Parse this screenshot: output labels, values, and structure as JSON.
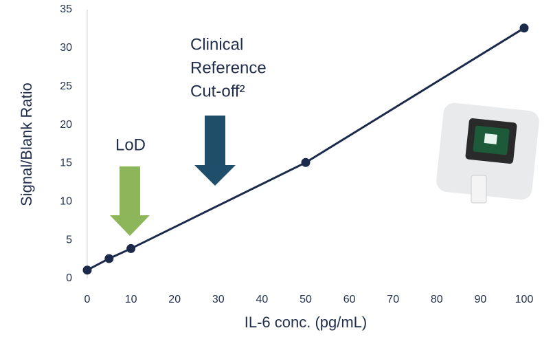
{
  "chart_data": {
    "type": "line",
    "x_label": "IL-6 conc. (pg/mL)",
    "y_label": "Signal/Blank Ratio",
    "x": [
      0,
      5,
      10,
      50,
      100
    ],
    "series": [
      {
        "color": "#1b2a4a",
        "values": [
          1.1,
          2.6,
          3.9,
          15.1,
          32.6
        ]
      }
    ],
    "xlim": [
      0,
      100
    ],
    "xticks": [
      0,
      10,
      20,
      30,
      40,
      50,
      60,
      70,
      80,
      90,
      100
    ],
    "ylim": [
      0,
      35
    ],
    "yticks": [
      0,
      5,
      10,
      15,
      20,
      25,
      30,
      35
    ],
    "grid": false,
    "annotations": [
      {
        "lines": [
          "LoD"
        ],
        "color": "#8db55a"
      },
      {
        "lines": [
          "Clinical",
          "Reference",
          "Cut-off²"
        ],
        "color": "#1f4e6b"
      }
    ]
  }
}
